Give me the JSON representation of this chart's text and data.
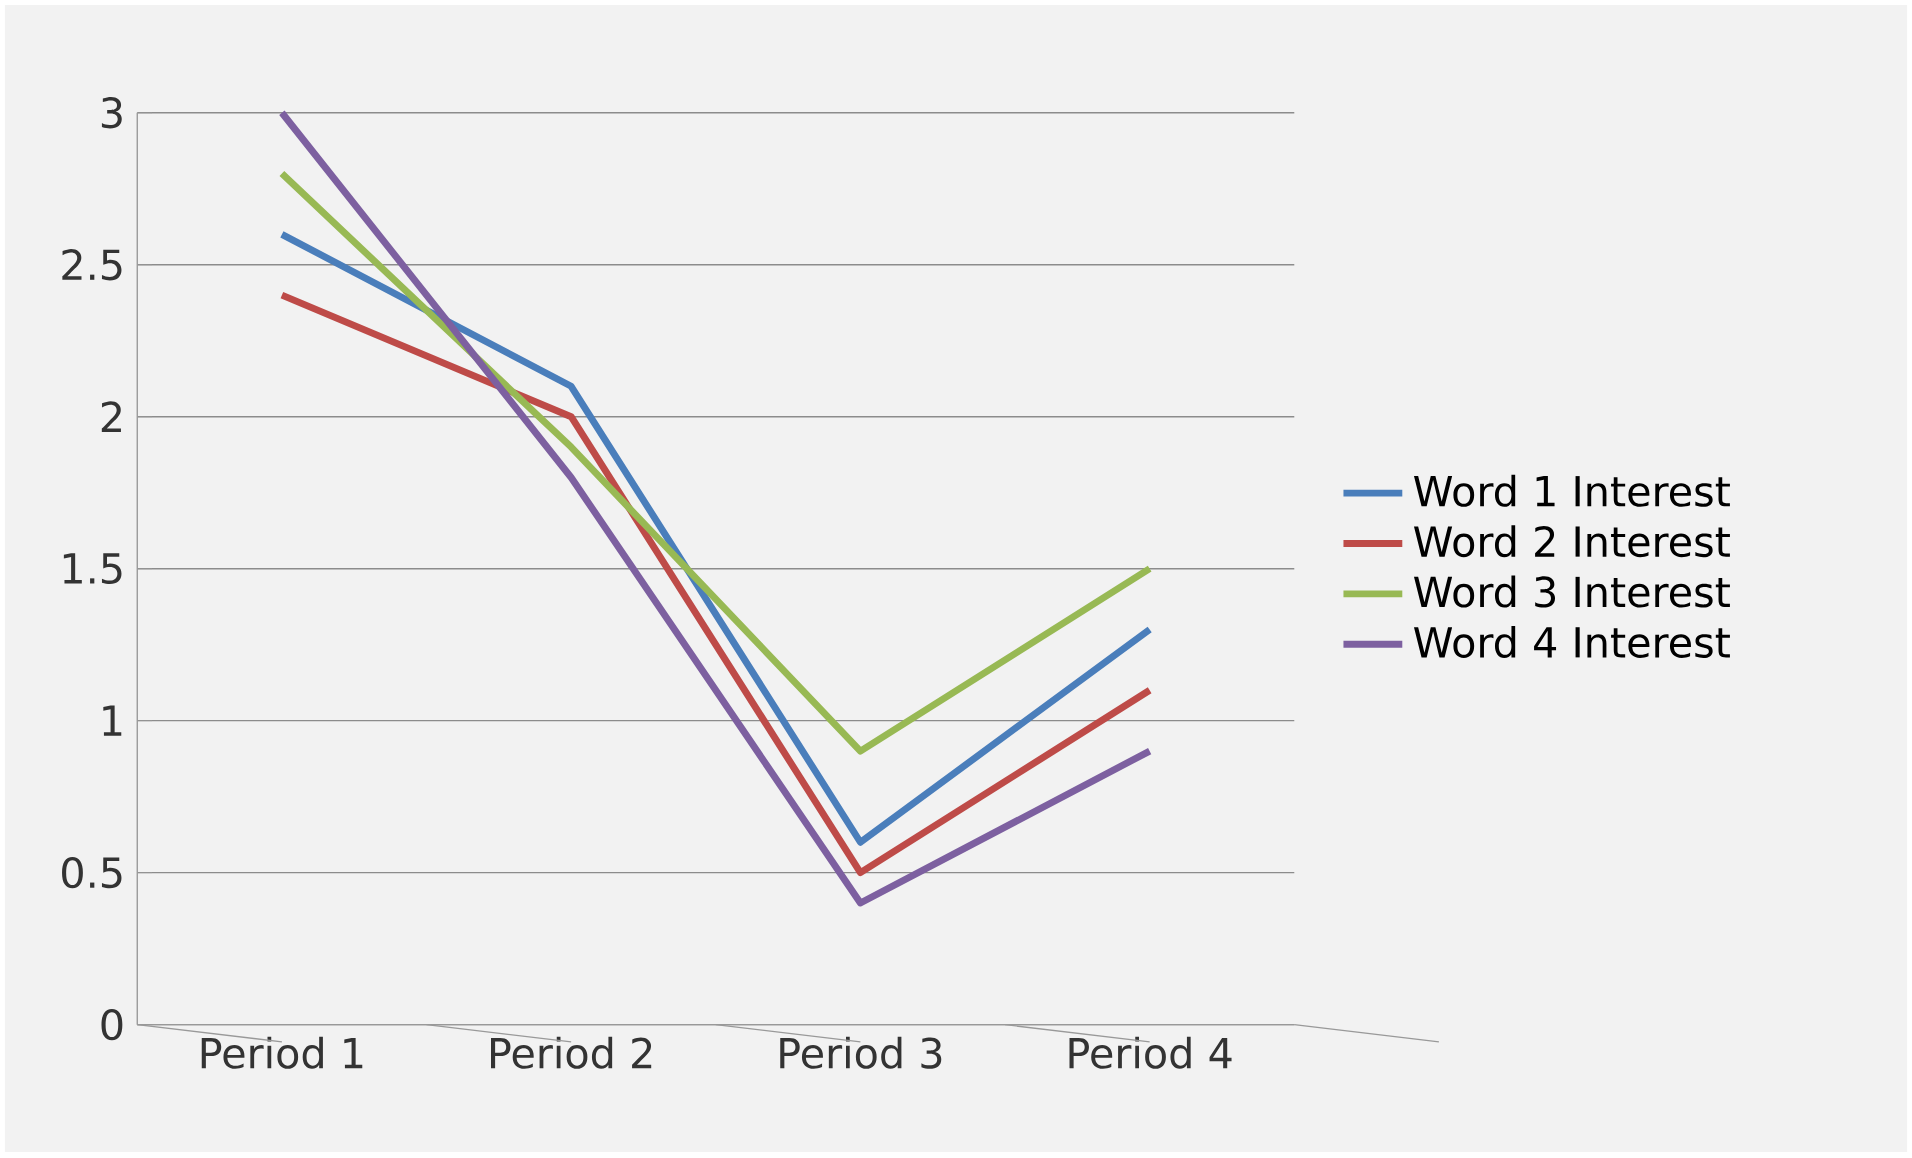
{
  "chart_data": {
    "type": "line",
    "categories": [
      "Period 1",
      "Period 2",
      "Period 3",
      "Period 4"
    ],
    "series": [
      {
        "name": "Word 1 Interest",
        "color": "#4a7ebb",
        "values": [
          2.6,
          2.1,
          0.6,
          1.3
        ]
      },
      {
        "name": "Word 2 Interest",
        "color": "#be4b48",
        "values": [
          2.4,
          2.0,
          0.5,
          1.1
        ]
      },
      {
        "name": "Word 3 Interest",
        "color": "#98b954",
        "values": [
          2.8,
          1.9,
          0.9,
          1.5
        ]
      },
      {
        "name": "Word 4 Interest",
        "color": "#7d60a0",
        "values": [
          3.0,
          1.8,
          0.4,
          0.9
        ]
      }
    ],
    "ylim": [
      0,
      3
    ],
    "yticks": [
      0,
      0.5,
      1,
      1.5,
      2,
      2.5,
      3
    ],
    "grid": "y",
    "legend": "right",
    "marker": "none",
    "line_style": "solid"
  }
}
